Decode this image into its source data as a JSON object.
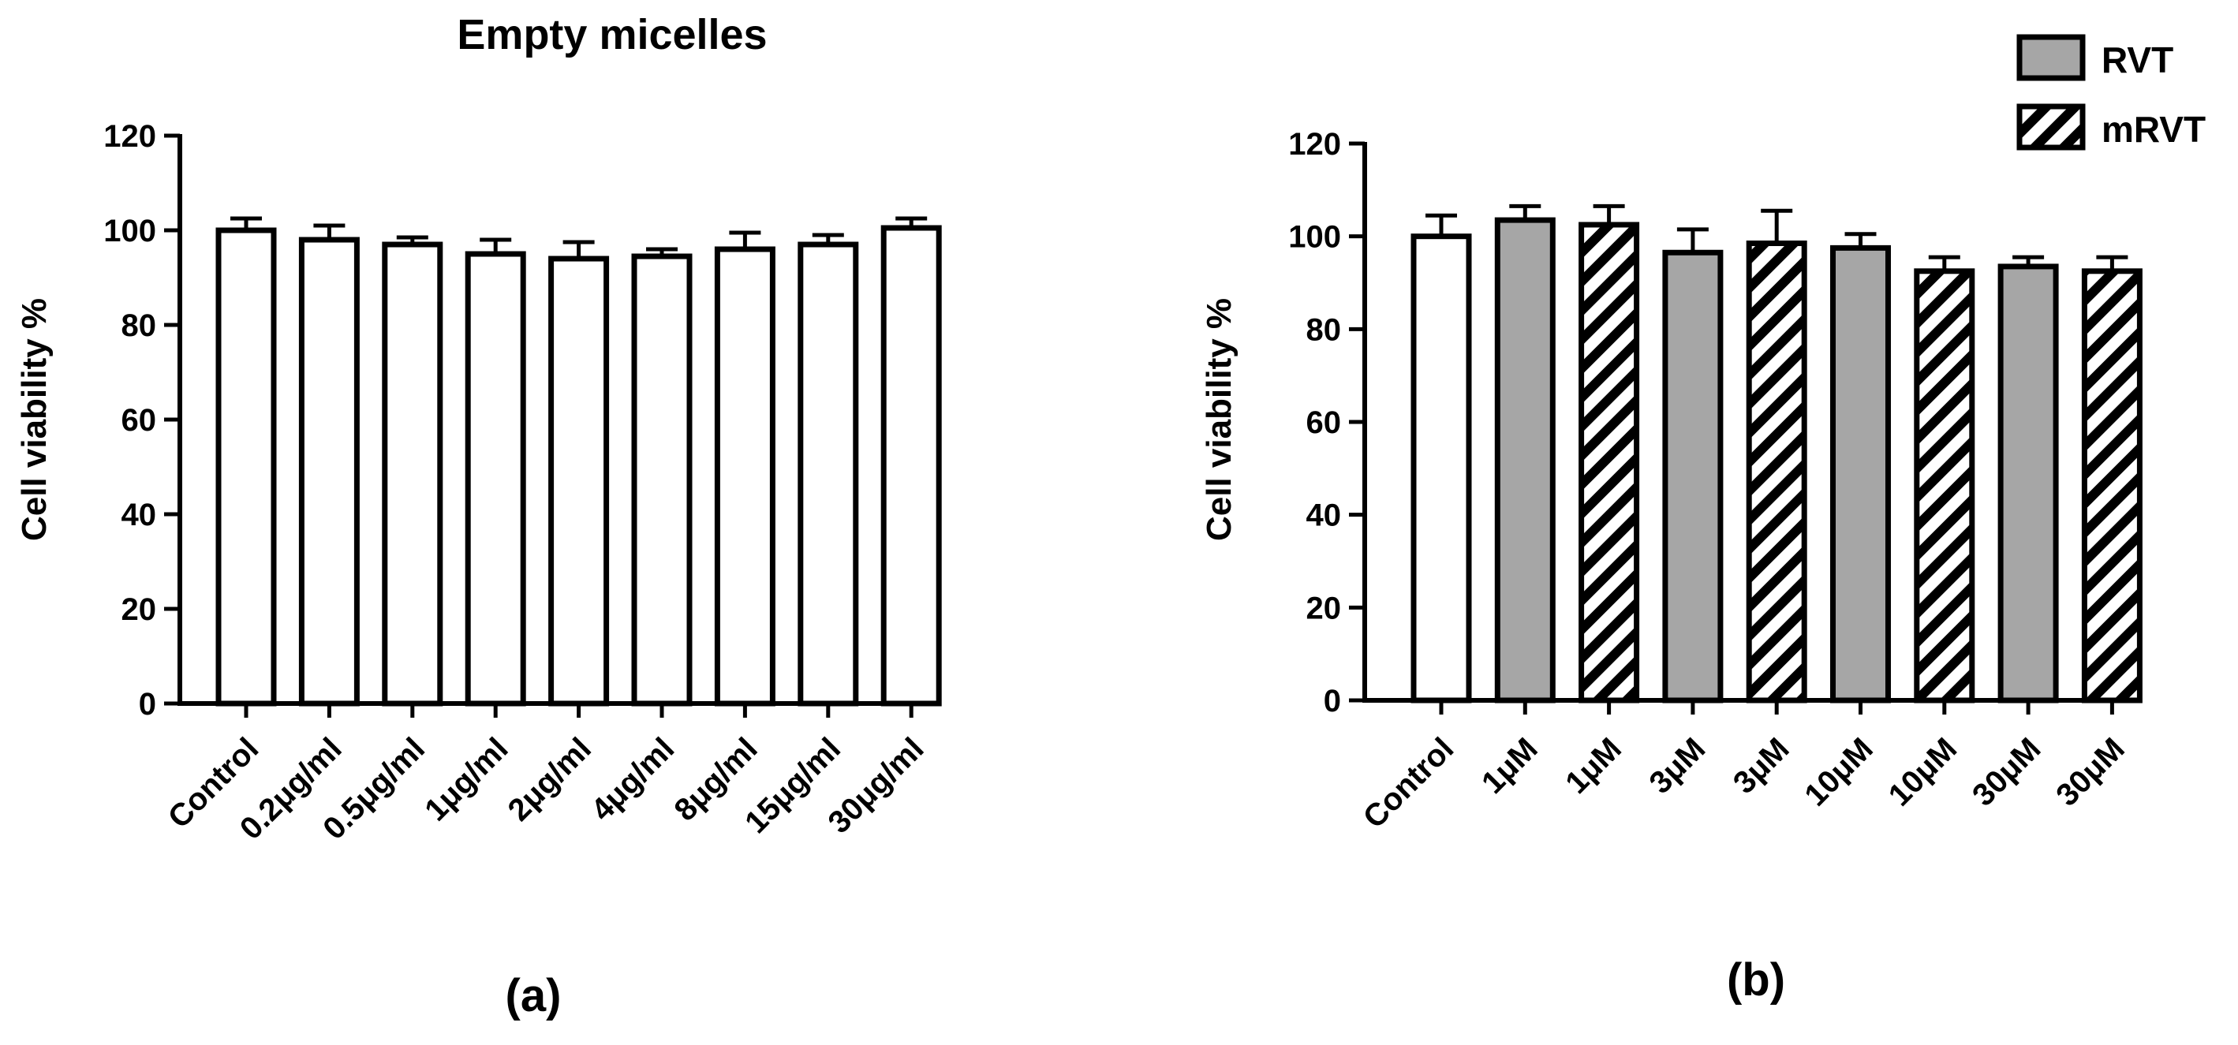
{
  "chart_data": [
    {
      "type": "bar",
      "panel_label": "(a)",
      "title": "Empty micelles",
      "xlabel": "",
      "ylabel": "Cell viability %",
      "ylim": [
        0,
        120
      ],
      "yticks": [
        0,
        20,
        40,
        60,
        80,
        100,
        120
      ],
      "categories": [
        "Control",
        "0.2μg/ml",
        "0.5μg/ml",
        "1μg/ml",
        "2μg/ml",
        "4μg/ml",
        "8μg/ml",
        "15μg/ml",
        "30μg/ml"
      ],
      "values": [
        100,
        98,
        97,
        95,
        94,
        94.5,
        96,
        97,
        100.5
      ],
      "errors": [
        2.5,
        3,
        1.5,
        3,
        3.5,
        1.5,
        3.5,
        2,
        2
      ],
      "fills": [
        "white",
        "white",
        "white",
        "white",
        "white",
        "white",
        "white",
        "white",
        "white"
      ]
    },
    {
      "type": "bar",
      "panel_label": "(b)",
      "title": "",
      "xlabel": "",
      "ylabel": "Cell viability %",
      "ylim": [
        0,
        120
      ],
      "yticks": [
        0,
        20,
        40,
        60,
        80,
        100,
        120
      ],
      "categories": [
        "Control",
        "1μM",
        "1μM",
        "3μM",
        "3μM",
        "10μM",
        "10μM",
        "30μM",
        "30μM"
      ],
      "values": [
        100,
        103.5,
        102.5,
        96.5,
        98.5,
        97.5,
        92.5,
        93.5,
        92.5
      ],
      "errors": [
        4.5,
        3,
        4,
        5,
        7,
        3,
        3,
        2,
        3
      ],
      "fills": [
        "white",
        "gray",
        "hatch",
        "gray",
        "hatch",
        "gray",
        "hatch",
        "gray",
        "hatch"
      ],
      "legend": [
        {
          "label": "RVT",
          "fill": "gray"
        },
        {
          "label": "mRVT",
          "fill": "hatch"
        }
      ],
      "legend_position": "top-right"
    }
  ],
  "colors": {
    "bar_gray": "#a6a6a6",
    "stroke": "#000000",
    "background": "#ffffff"
  }
}
